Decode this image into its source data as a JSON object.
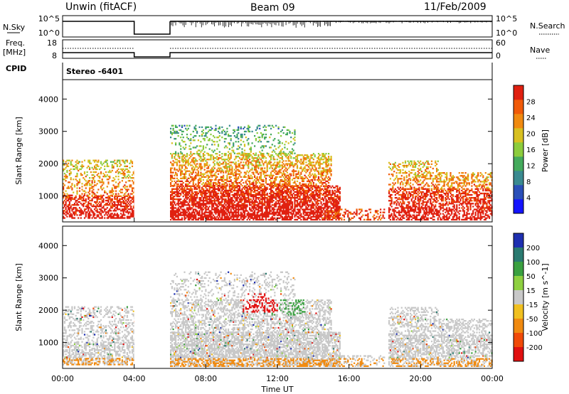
{
  "header": {
    "title": "Unwin (fitACF)",
    "beam": "Beam 09",
    "date": "11/Feb/2009"
  },
  "panels": {
    "nsky_label": "N.Sky",
    "nsearch_label": "N.Search",
    "nsky_ticks": [
      "10^5",
      "10^0"
    ],
    "nsearch_ticks": [
      "10^5",
      "10^0"
    ],
    "freq_label_line1": "Freq.",
    "freq_label_line2": "[MHz]",
    "freq_ticks": [
      "18",
      "8"
    ],
    "nave_label": "Nave",
    "nave_ticks": [
      "60",
      "0"
    ],
    "cpid_label": "CPID",
    "cpid_value": "Stereo -6401"
  },
  "chart_data": [
    {
      "type": "heatmap",
      "name": "power",
      "ylabel": "Slant Range [km]",
      "xlabel": "Time UT",
      "x_ticks": [
        "00:00",
        "04:00",
        "08:00",
        "12:00",
        "16:00",
        "20:00",
        "00:00"
      ],
      "y_ticks": [
        1000,
        2000,
        3000,
        4000
      ],
      "ylim": [
        200,
        4600
      ],
      "xlim_hours": [
        0,
        24
      ],
      "data_gaps_hours": [
        [
          4.0,
          6.0
        ]
      ],
      "colorbar": {
        "label": "Power [dB]",
        "ticks": [
          4,
          8,
          12,
          16,
          20,
          24,
          28
        ],
        "colors": [
          "#1414ff",
          "#2a4fb8",
          "#3a8a90",
          "#44aa5c",
          "#8ccc3c",
          "#d8c020",
          "#f08a10",
          "#f05a08",
          "#e02010"
        ]
      }
    },
    {
      "type": "heatmap",
      "name": "velocity",
      "ylabel": "Slant Range [km]",
      "xlabel": "Time UT",
      "x_ticks": [
        "00:00",
        "04:00",
        "08:00",
        "12:00",
        "16:00",
        "20:00",
        "00:00"
      ],
      "y_ticks": [
        1000,
        2000,
        3000,
        4000
      ],
      "ylim": [
        200,
        4600
      ],
      "xlim_hours": [
        0,
        24
      ],
      "data_gaps_hours": [
        [
          4.0,
          6.0
        ]
      ],
      "colorbar": {
        "label": "Velocity [m s^-1]",
        "ticks": [
          200,
          100,
          50,
          15,
          -15,
          -50,
          -100,
          -200
        ],
        "colors": [
          "#1e2fb0",
          "#2a7a70",
          "#3aa040",
          "#8ed040",
          "#c8c8c8",
          "#f0c020",
          "#f08a10",
          "#f04a08",
          "#e01010"
        ]
      }
    }
  ]
}
